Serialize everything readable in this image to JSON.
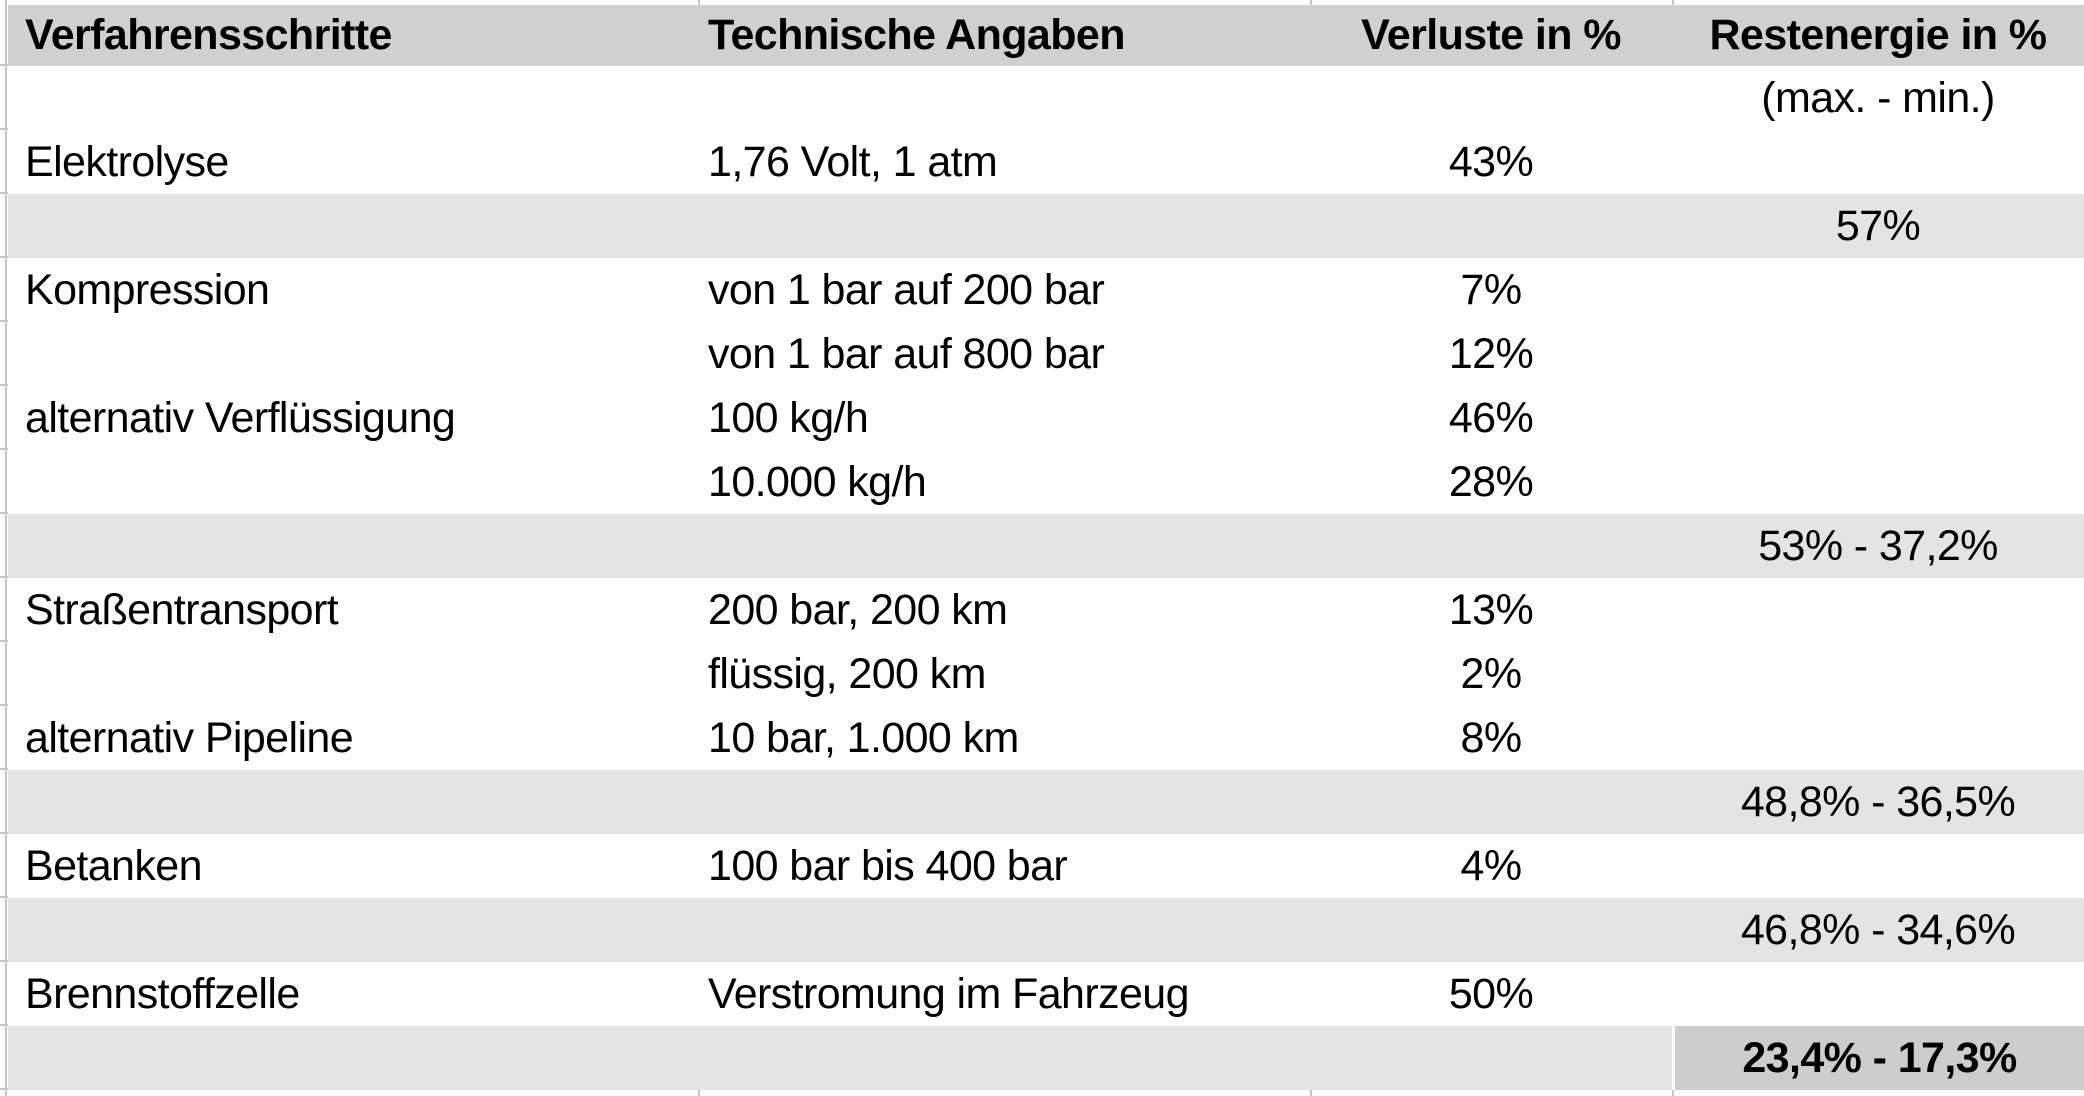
{
  "colors": {
    "header_bg": "#d0d0d0",
    "band_bg": "#e4e4e4",
    "final_cell_bg": "#cdcdcd",
    "gridline": "#c6c6c6",
    "text": "#000000"
  },
  "chart_data": {
    "type": "table",
    "columns": [
      "Verfahrensschritte",
      "Technische Angaben",
      "Verluste in %",
      "Restenergie in %"
    ],
    "rows": [
      [
        "",
        "",
        "",
        "(max. - min.)"
      ],
      [
        "Elektrolyse",
        "1,76 Volt, 1 atm",
        "43%",
        ""
      ],
      [
        "",
        "",
        "",
        "57%"
      ],
      [
        "Kompression",
        "von 1 bar auf 200 bar",
        "7%",
        ""
      ],
      [
        "",
        "von 1 bar auf 800 bar",
        "12%",
        ""
      ],
      [
        "alternativ Verflüssigung",
        "100 kg/h",
        "46%",
        ""
      ],
      [
        "",
        "10.000 kg/h",
        "28%",
        ""
      ],
      [
        "",
        "",
        "",
        "53% - 37,2%"
      ],
      [
        "Straßentransport",
        "200 bar, 200 km",
        "13%",
        ""
      ],
      [
        "",
        "flüssig, 200 km",
        "2%",
        ""
      ],
      [
        "alternativ Pipeline",
        "10 bar, 1.000 km",
        "8%",
        ""
      ],
      [
        "",
        "",
        "",
        "48,8% - 36,5%"
      ],
      [
        "Betanken",
        "100 bar bis 400 bar",
        "4%",
        ""
      ],
      [
        "",
        "",
        "",
        "46,8% - 34,6%"
      ],
      [
        "Brennstoffzelle",
        "Verstromung im Fahrzeug",
        "50%",
        ""
      ],
      [
        "",
        "",
        "",
        "23,4% - 17,3%"
      ]
    ],
    "row_styles": [
      "white",
      "white",
      "band",
      "white",
      "white",
      "white",
      "white",
      "band",
      "white",
      "white",
      "white",
      "band",
      "white",
      "band",
      "white",
      "final"
    ],
    "layout": {
      "grid": "off",
      "header_row_shaded": true,
      "summary_rows_shaded": true,
      "final_value_bold": true
    }
  }
}
